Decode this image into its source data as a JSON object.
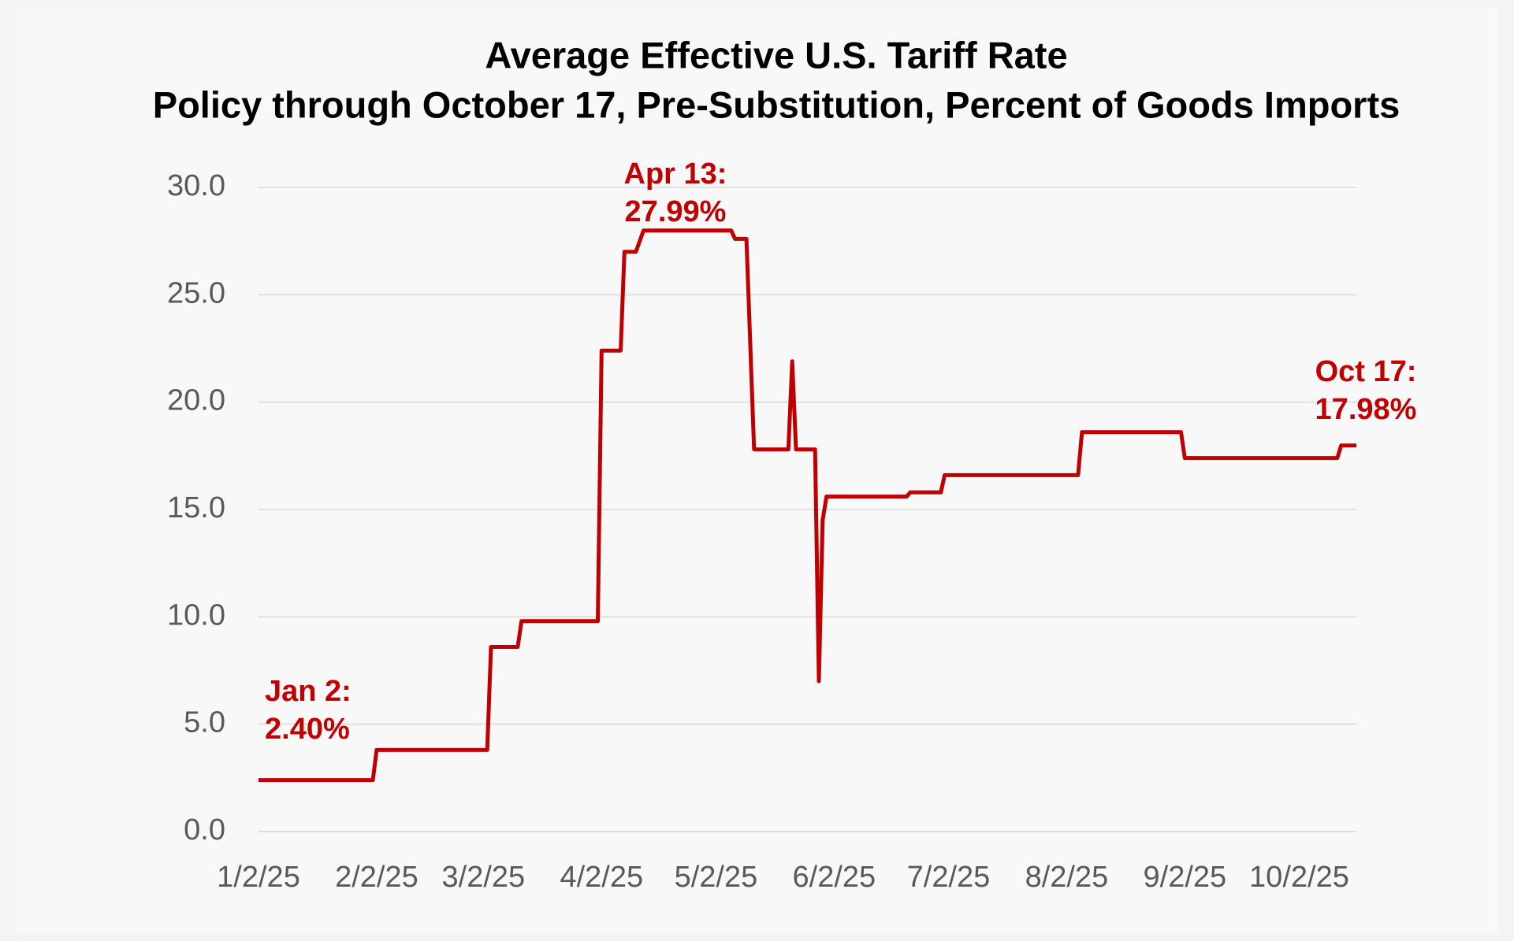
{
  "chart_data": {
    "type": "line",
    "title": "Average Effective U.S. Tariff Rate",
    "subtitle": "Policy through October 17, Pre-Substitution, Percent of Goods Imports",
    "x": [
      "1/2/25",
      "2/1/25",
      "2/2/25",
      "3/3/25",
      "3/4/25",
      "3/11/25",
      "3/12/25",
      "4/1/25",
      "4/2/25",
      "4/7/25",
      "4/8/25",
      "4/11/25",
      "4/13/25",
      "5/6/25",
      "5/7/25",
      "5/10/25",
      "5/12/25",
      "5/21/25",
      "5/22/25",
      "5/23/25",
      "5/24/25",
      "5/28/25",
      "5/29/25",
      "5/30/25",
      "5/31/25",
      "6/21/25",
      "6/22/25",
      "6/30/25",
      "7/1/25",
      "8/5/25",
      "8/6/25",
      "9/1/25",
      "9/2/25",
      "10/12/25",
      "10/13/25",
      "10/17/25"
    ],
    "series": [
      {
        "name": "Average effective tariff rate",
        "color": "#c00000",
        "values": [
          2.4,
          2.4,
          3.8,
          3.8,
          8.6,
          8.6,
          9.8,
          9.8,
          22.4,
          22.4,
          27.0,
          27.0,
          27.99,
          27.99,
          27.6,
          27.6,
          17.8,
          17.8,
          21.9,
          17.8,
          17.8,
          17.8,
          7.0,
          14.5,
          15.6,
          15.6,
          15.8,
          15.8,
          16.6,
          16.6,
          18.6,
          18.6,
          17.4,
          17.4,
          17.98,
          17.98
        ]
      }
    ],
    "xlim": [
      "1/2/25",
      "10/17/25"
    ],
    "xticks": [
      "1/2/25",
      "2/2/25",
      "3/2/25",
      "4/2/25",
      "5/2/25",
      "6/2/25",
      "7/2/25",
      "8/2/25",
      "9/2/25",
      "10/2/25"
    ],
    "ylim": [
      0,
      30
    ],
    "yticks": [
      {
        "value": 0,
        "label": "0.0"
      },
      {
        "value": 5,
        "label": "5.0"
      },
      {
        "value": 10,
        "label": "10.0"
      },
      {
        "value": 15,
        "label": "15.0"
      },
      {
        "value": 20,
        "label": "20.0"
      },
      {
        "value": 25,
        "label": "25.0"
      },
      {
        "value": 30,
        "label": "30.0"
      }
    ],
    "grid": true,
    "annotations": [
      [
        "Jan 2:",
        "2.40%"
      ],
      [
        "Apr 13:",
        "27.99%"
      ],
      [
        "Oct 17:",
        "17.98%"
      ]
    ]
  }
}
